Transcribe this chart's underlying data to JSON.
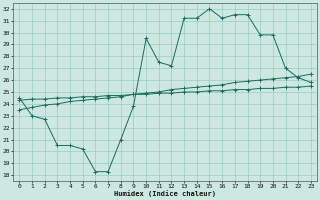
{
  "xlabel": "Humidex (Indice chaleur)",
  "bg_color": "#cce8e0",
  "grid_color": "#99ccc2",
  "line_color": "#1a6b5e",
  "xlim": [
    -0.5,
    23.5
  ],
  "ylim": [
    17.5,
    32.5
  ],
  "xticks": [
    0,
    1,
    2,
    3,
    4,
    5,
    6,
    7,
    8,
    9,
    10,
    11,
    12,
    13,
    14,
    15,
    16,
    17,
    18,
    19,
    20,
    21,
    22,
    23
  ],
  "yticks": [
    18,
    19,
    20,
    21,
    22,
    23,
    24,
    25,
    26,
    27,
    28,
    29,
    30,
    31,
    32
  ],
  "line1_x": [
    0,
    1,
    2,
    3,
    4,
    5,
    6,
    7,
    8,
    9,
    10,
    11,
    12,
    13,
    14,
    15,
    16,
    17,
    18,
    19,
    20,
    21,
    22,
    23
  ],
  "line1_y": [
    24.5,
    23.0,
    22.7,
    20.5,
    20.5,
    20.2,
    18.3,
    18.3,
    21.0,
    23.8,
    29.5,
    27.5,
    27.2,
    31.2,
    31.2,
    32.0,
    31.2,
    31.5,
    31.5,
    29.8,
    29.8,
    27.0,
    26.2,
    25.8
  ],
  "line2_x": [
    0,
    1,
    2,
    3,
    4,
    5,
    6,
    7,
    8,
    9,
    10,
    11,
    12,
    13,
    14,
    15,
    16,
    17,
    18,
    19,
    20,
    21,
    22,
    23
  ],
  "line2_y": [
    23.5,
    23.7,
    23.9,
    24.0,
    24.2,
    24.3,
    24.4,
    24.5,
    24.6,
    24.8,
    24.9,
    25.0,
    25.2,
    25.3,
    25.4,
    25.5,
    25.6,
    25.8,
    25.9,
    26.0,
    26.1,
    26.2,
    26.3,
    26.5
  ],
  "line3_x": [
    0,
    1,
    2,
    3,
    4,
    5,
    6,
    7,
    8,
    9,
    10,
    11,
    12,
    13,
    14,
    15,
    16,
    17,
    18,
    19,
    20,
    21,
    22,
    23
  ],
  "line3_y": [
    24.3,
    24.4,
    24.4,
    24.5,
    24.5,
    24.6,
    24.6,
    24.7,
    24.7,
    24.8,
    24.8,
    24.9,
    24.9,
    25.0,
    25.0,
    25.1,
    25.1,
    25.2,
    25.2,
    25.3,
    25.3,
    25.4,
    25.4,
    25.5
  ],
  "marker": "+"
}
